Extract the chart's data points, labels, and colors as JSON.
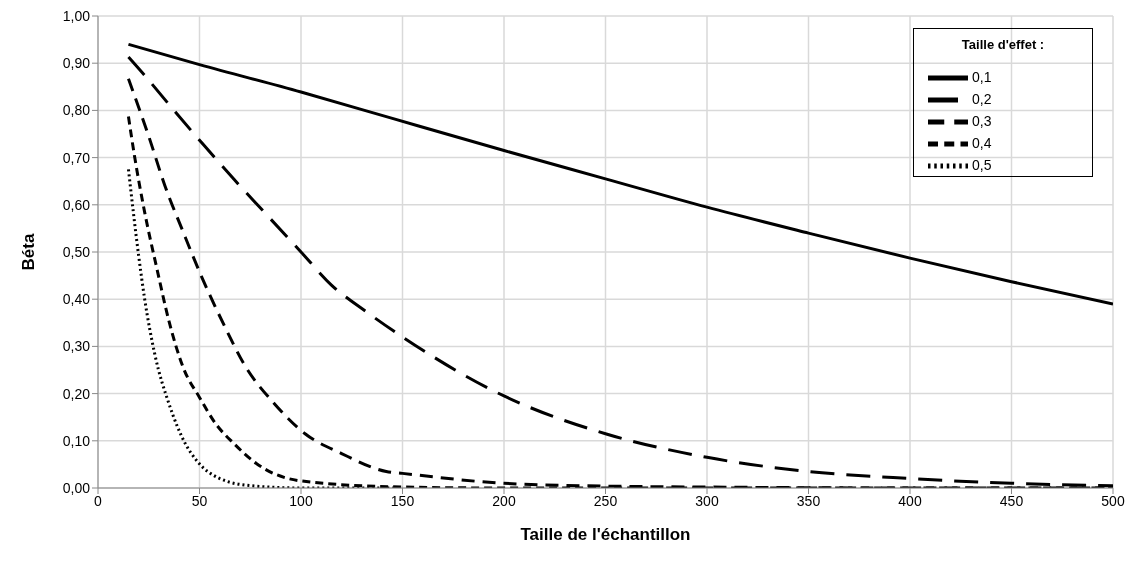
{
  "chart_data": {
    "type": "line",
    "xlabel": "Taille de l'échantillon",
    "ylabel": "Béta",
    "legend_title": "Taille d'effet :",
    "legend": "top right",
    "grid": true,
    "marker": "none",
    "xlim": [
      0,
      500
    ],
    "xticks": [
      0,
      50,
      100,
      150,
      200,
      250,
      300,
      350,
      400,
      450,
      500
    ],
    "ylim": [
      0,
      1
    ],
    "yticks": [
      {
        "value": 0,
        "label": "0,00"
      },
      {
        "value": 0.1,
        "label": "0,10"
      },
      {
        "value": 0.2,
        "label": "0,20"
      },
      {
        "value": 0.3,
        "label": "0,30"
      },
      {
        "value": 0.4,
        "label": "0,40"
      },
      {
        "value": 0.5,
        "label": "0,50"
      },
      {
        "value": 0.6,
        "label": "0,60"
      },
      {
        "value": 0.7,
        "label": "0,70"
      },
      {
        "value": 0.8,
        "label": "0,80"
      },
      {
        "value": 0.9,
        "label": "0,90"
      },
      {
        "value": 1,
        "label": "1,00"
      }
    ],
    "series": [
      {
        "name": "0,1",
        "color": "#000000",
        "line_style": "solid",
        "x": [
          15,
          50,
          100,
          145,
          200,
          250,
          300,
          350,
          400,
          450,
          500
        ],
        "values": [
          0.94,
          0.897,
          0.839,
          0.783,
          0.715,
          0.655,
          0.595,
          0.54,
          0.487,
          0.437,
          0.39
        ]
      },
      {
        "name": "0,2",
        "color": "#000000",
        "line_style": "dashed",
        "x": [
          15,
          23,
          38,
          52,
          67,
          82,
          100,
          115,
          132,
          150,
          200,
          250,
          300,
          350,
          400,
          450,
          500
        ],
        "values": [
          0.913,
          0.874,
          0.797,
          0.727,
          0.654,
          0.584,
          0.5,
          0.43,
          0.374,
          0.32,
          0.195,
          0.115,
          0.065,
          0.035,
          0.02,
          0.01,
          0.005
        ]
      },
      {
        "name": "0,3",
        "color": "#000000",
        "line_style": "dashed",
        "x": [
          15,
          25,
          33,
          42,
          50,
          62,
          72,
          87,
          102,
          120,
          142,
          150,
          200,
          250,
          300,
          400,
          500
        ],
        "values": [
          0.867,
          0.745,
          0.64,
          0.542,
          0.458,
          0.346,
          0.262,
          0.178,
          0.115,
          0.073,
          0.035,
          0.031,
          0.01,
          0.004,
          0.002,
          0,
          0
        ]
      },
      {
        "name": "0,4",
        "color": "#000000",
        "line_style": "dashed",
        "x": [
          15,
          18,
          23,
          29,
          35,
          42,
          50,
          58,
          67,
          78,
          100,
          150,
          200,
          300,
          500
        ],
        "values": [
          0.787,
          0.703,
          0.584,
          0.465,
          0.353,
          0.255,
          0.192,
          0.136,
          0.094,
          0.052,
          0.015,
          0.002,
          0,
          0,
          0
        ]
      },
      {
        "name": "0,5",
        "color": "#000000",
        "line_style": "dotted",
        "x": [
          15,
          20,
          23,
          28,
          35,
          43,
          49,
          60,
          75,
          100,
          150
        ],
        "values": [
          0.675,
          0.493,
          0.4,
          0.283,
          0.178,
          0.094,
          0.056,
          0.02,
          0.005,
          0,
          0
        ]
      }
    ]
  }
}
